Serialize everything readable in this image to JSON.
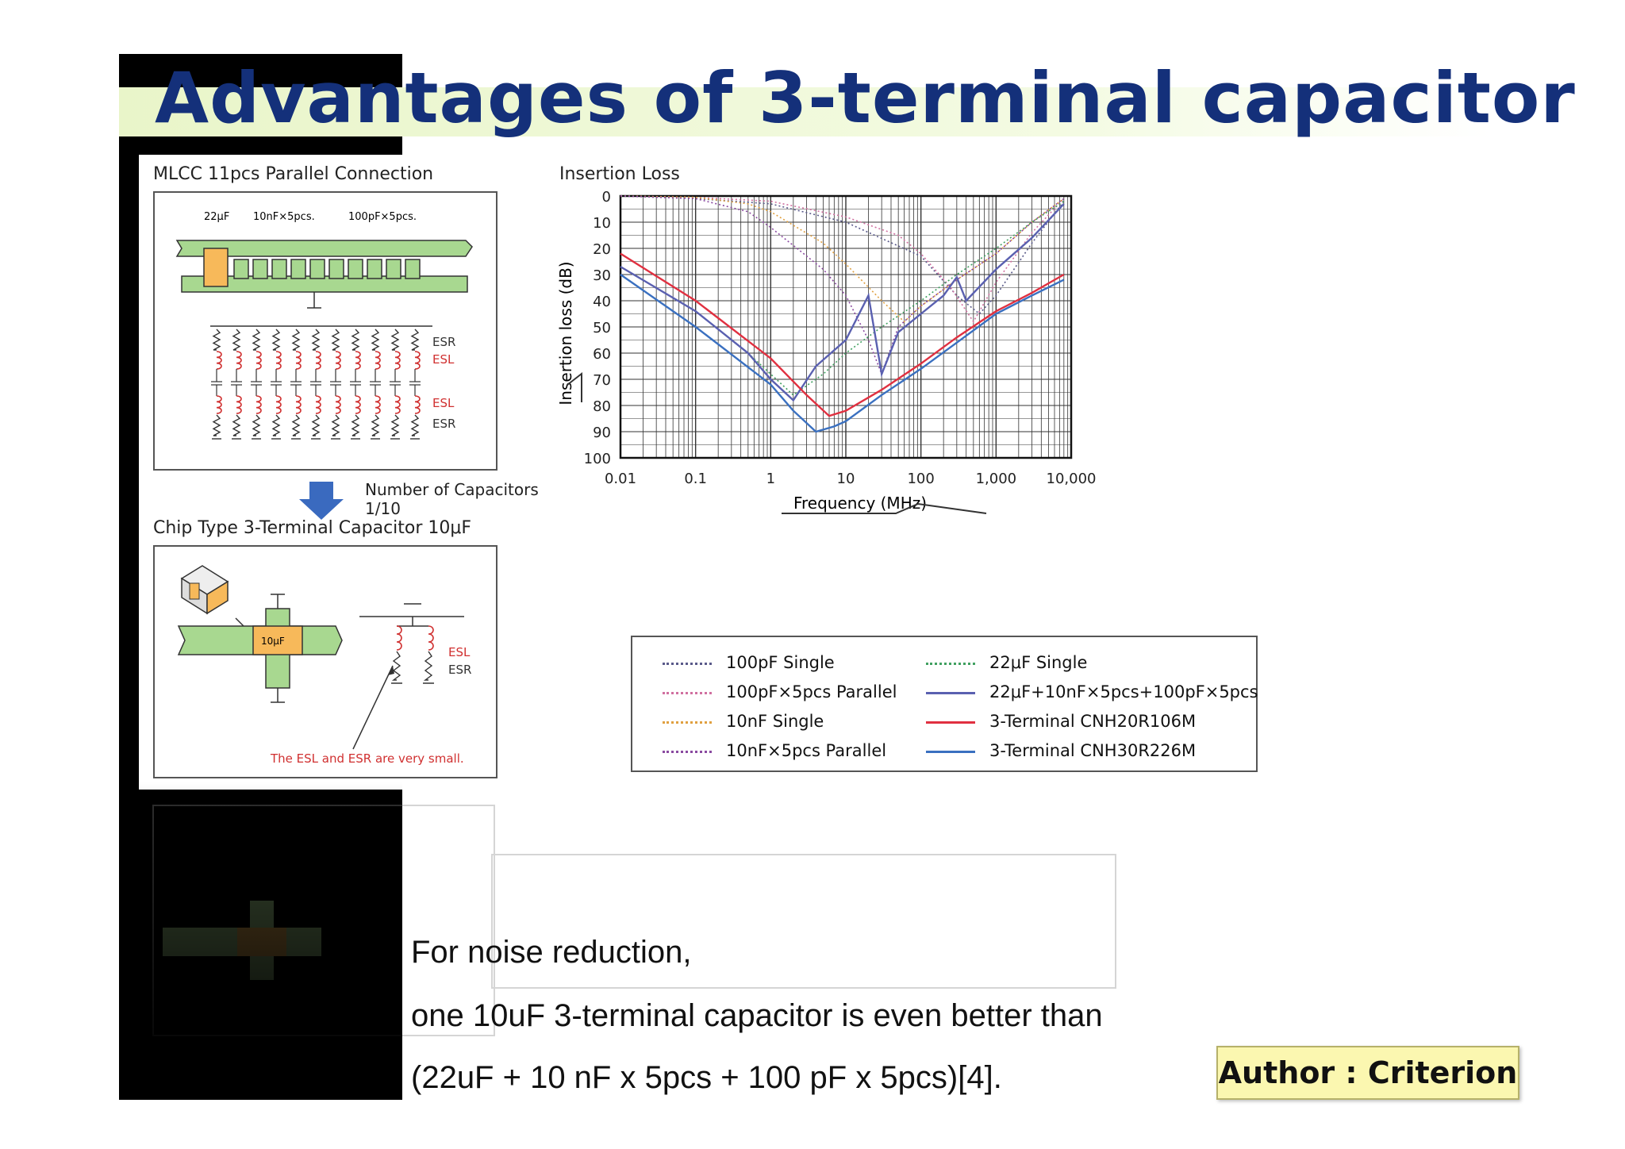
{
  "title": "Advantages of 3-terminal capacitor",
  "mlcc": {
    "heading": "MLCC 11pcs Parallel Connection",
    "label_22uf": "22μF",
    "label_10nf": "10nF×5pcs.",
    "label_100pf": "100pF×5pcs.",
    "esr_top": "ESR",
    "esl_top": "ESL",
    "esl_bottom": "ESL",
    "esr_bottom": "ESR"
  },
  "arrow": {
    "line1": "Number of Capacitors",
    "line2": "1/10"
  },
  "chip": {
    "heading": "Chip Type 3-Terminal Capacitor 10μF",
    "cap_label": "10μF",
    "esl": "ESL",
    "esr": "ESR",
    "note": "The ESL and ESR are very small.",
    "note_color": "#d03030"
  },
  "chart_data": {
    "type": "line",
    "title": "Insertion Loss",
    "xlabel": "Frequency (MHz)",
    "ylabel": "Insertion loss (dB)",
    "x_scale": "log",
    "xlim": [
      0.01,
      10000
    ],
    "ylim": [
      0,
      100
    ],
    "y_inverted": true,
    "grid": true,
    "x_ticks": [
      "0.01",
      "0.1",
      "1",
      "10",
      "100",
      "1,000",
      "10,000"
    ],
    "y_ticks": [
      "0",
      "10",
      "20",
      "30",
      "40",
      "50",
      "60",
      "70",
      "80",
      "90",
      "100"
    ],
    "legend_position": "bottom",
    "series": [
      {
        "name": "100pF Single",
        "style": "dotted",
        "color": "#5a5a8a",
        "x": [
          0.01,
          0.1,
          1,
          10,
          100,
          300,
          600,
          1000,
          3000,
          8000
        ],
        "y": [
          0,
          1,
          3,
          10,
          23,
          38,
          45,
          38,
          18,
          2
        ]
      },
      {
        "name": "100pF×5pcs Parallel",
        "style": "dotted",
        "color": "#d070a0",
        "x": [
          0.01,
          0.1,
          1,
          10,
          50,
          100,
          250,
          500,
          1000,
          3000,
          8000
        ],
        "y": [
          0,
          0.5,
          2,
          8,
          15,
          22,
          35,
          48,
          33,
          14,
          1
        ]
      },
      {
        "name": "10nF Single",
        "style": "dotted",
        "color": "#e0a040",
        "x": [
          0.01,
          0.1,
          0.5,
          1,
          5,
          10,
          30,
          60,
          100,
          300,
          1000,
          3000,
          8000
        ],
        "y": [
          0,
          0.5,
          3,
          6,
          18,
          26,
          40,
          48,
          42,
          32,
          22,
          10,
          1
        ]
      },
      {
        "name": "10nF×5pcs Parallel",
        "style": "dotted",
        "color": "#8a4aa0",
        "x": [
          0.01,
          0.1,
          0.5,
          1,
          5,
          10,
          20,
          30,
          50,
          100,
          300,
          1000,
          3000,
          8000
        ],
        "y": [
          0,
          1,
          6,
          12,
          28,
          38,
          55,
          68,
          50,
          42,
          32,
          22,
          10,
          1
        ]
      },
      {
        "name": "22μF Single",
        "style": "dotted",
        "color": "#40a060",
        "x": [
          0.01,
          0.1,
          0.5,
          1,
          2,
          5,
          10,
          30,
          100,
          300,
          1000,
          3000,
          8000
        ],
        "y": [
          27,
          44,
          60,
          68,
          76,
          68,
          60,
          50,
          40,
          30,
          20,
          10,
          2
        ]
      },
      {
        "name": "22μF+10nF×5pcs+100pF×5pcs",
        "style": "solid",
        "color": "#5a60b0",
        "x": [
          0.01,
          0.1,
          0.5,
          1,
          2,
          4,
          10,
          20,
          30,
          50,
          100,
          200,
          300,
          400,
          1000,
          3000,
          8000
        ],
        "y": [
          27,
          44,
          60,
          70,
          78,
          65,
          55,
          38,
          68,
          52,
          45,
          38,
          31,
          40,
          28,
          16,
          3
        ]
      },
      {
        "name": "3-Terminal CNH20R106M",
        "style": "solid",
        "color": "#e03040",
        "x": [
          0.01,
          0.1,
          1,
          3,
          6,
          10,
          30,
          100,
          300,
          1000,
          3000,
          8000
        ],
        "y": [
          22,
          40,
          62,
          76,
          84,
          82,
          74,
          64,
          54,
          44,
          37,
          30
        ]
      },
      {
        "name": "3-Terminal CNH30R226M",
        "style": "solid",
        "color": "#3a70c0",
        "x": [
          0.01,
          0.1,
          1,
          2,
          4,
          7,
          10,
          30,
          100,
          300,
          1000,
          3000,
          8000
        ],
        "y": [
          30,
          50,
          72,
          82,
          90,
          88,
          86,
          76,
          66,
          56,
          45,
          38,
          32
        ]
      }
    ]
  },
  "body": {
    "line1": "For noise reduction,",
    "line2": "one 10uF 3-terminal capacitor is even better than",
    "line3": "(22uF + 10 nF x 5pcs + 100 pF x 5pcs)[4]."
  },
  "author": "Author : Criterion"
}
